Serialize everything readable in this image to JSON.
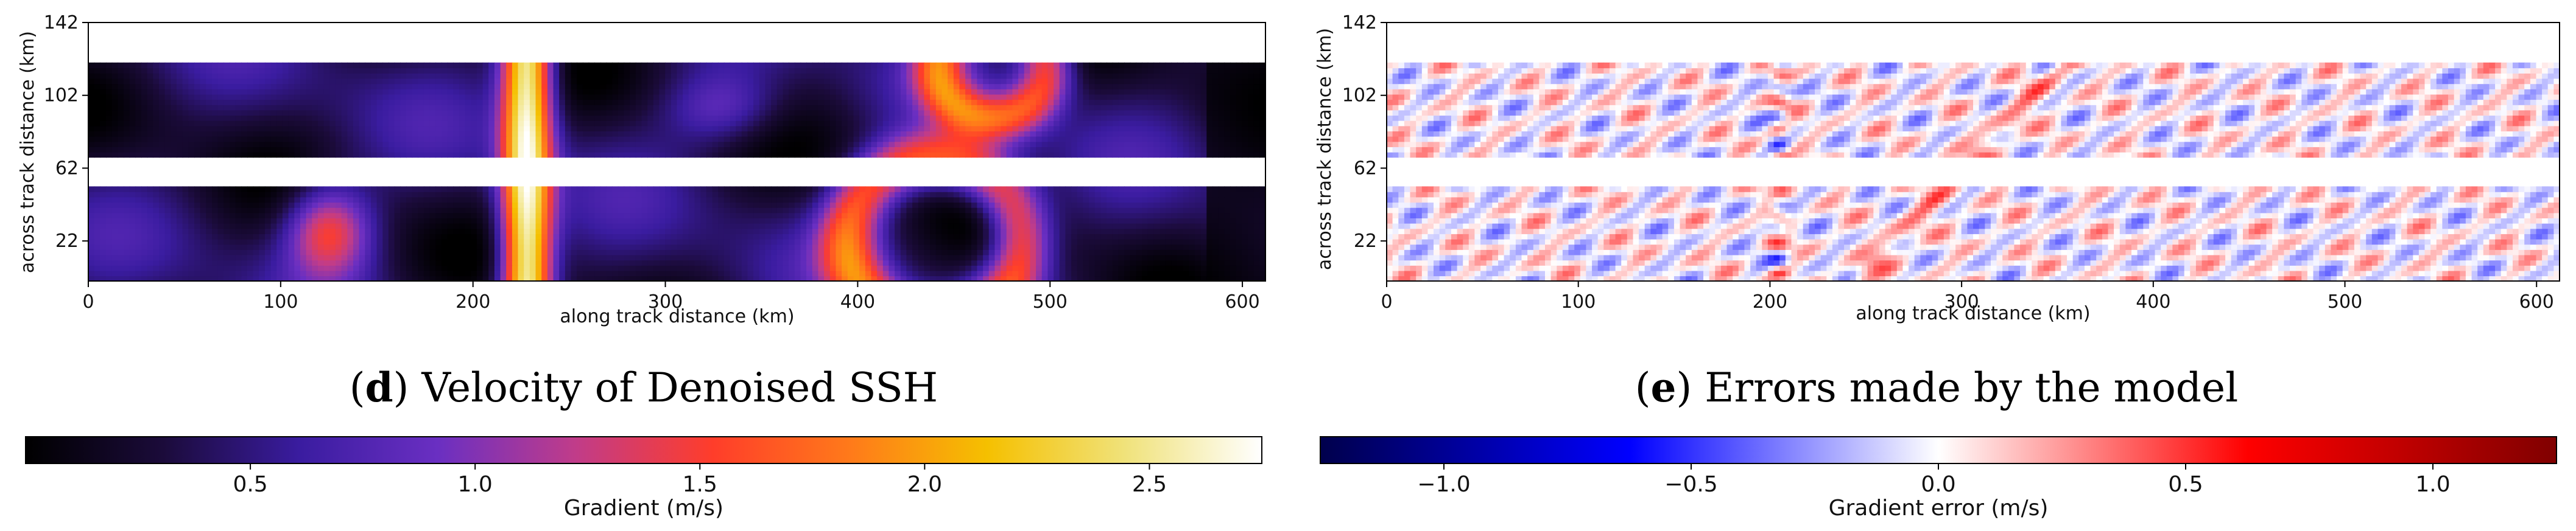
{
  "panels": [
    {
      "id": "d",
      "caption_letter": "d",
      "caption_text": "Velocity of Denoised SSH",
      "chart_data": {
        "type": "heatmap",
        "title": "Velocity of Denoised SSH",
        "xlabel": "along track distance (km)",
        "ylabel": "across track distance (km)",
        "xlim": [
          0,
          612
        ],
        "ylim": [
          0,
          142
        ],
        "xticks": [
          0,
          100,
          200,
          300,
          400,
          500,
          600
        ],
        "yticks": [
          22,
          62,
          102,
          142
        ],
        "swaths": [
          [
            0,
            52
          ],
          [
            68,
            120
          ]
        ],
        "colormap": "CMRmap-like (black–purple–red–orange–yellow–white)"
      },
      "colorbar": {
        "label": "Gradient (m/s)",
        "min": 0.0,
        "max": 2.75,
        "ticks": [
          0.5,
          1.0,
          1.5,
          2.0,
          2.5
        ],
        "tick_labels": [
          "0.5",
          "1.0",
          "1.5",
          "2.0",
          "2.5"
        ],
        "colors": [
          "#000000",
          "#1b0b3a",
          "#3a1ca0",
          "#6a2fc2",
          "#c03c8a",
          "#ff3d2a",
          "#ff7a1a",
          "#f5c000",
          "#f0e27a",
          "#ffffff"
        ]
      }
    },
    {
      "id": "e",
      "caption_letter": "e",
      "caption_text": "Errors made by the model",
      "chart_data": {
        "type": "heatmap",
        "title": "Errors made by the model",
        "xlabel": "along track distance (km)",
        "ylabel": "across track distance (km)",
        "xlim": [
          0,
          612
        ],
        "ylim": [
          0,
          142
        ],
        "xticks": [
          0,
          100,
          200,
          300,
          400,
          500,
          600
        ],
        "yticks": [
          22,
          62,
          102,
          142
        ],
        "swaths": [
          [
            0,
            52
          ],
          [
            68,
            120
          ]
        ],
        "colormap": "seismic (blue–white–red)"
      },
      "colorbar": {
        "label": "Gradient error (m/s)",
        "min": -1.25,
        "max": 1.25,
        "ticks": [
          -1.0,
          -0.5,
          0.0,
          0.5,
          1.0
        ],
        "tick_labels": [
          "−1.0",
          "−0.5",
          "0.0",
          "0.5",
          "1.0"
        ],
        "colors": [
          "#00004c",
          "#0000ff",
          "#ffffff",
          "#ff0000",
          "#800000"
        ]
      }
    }
  ]
}
